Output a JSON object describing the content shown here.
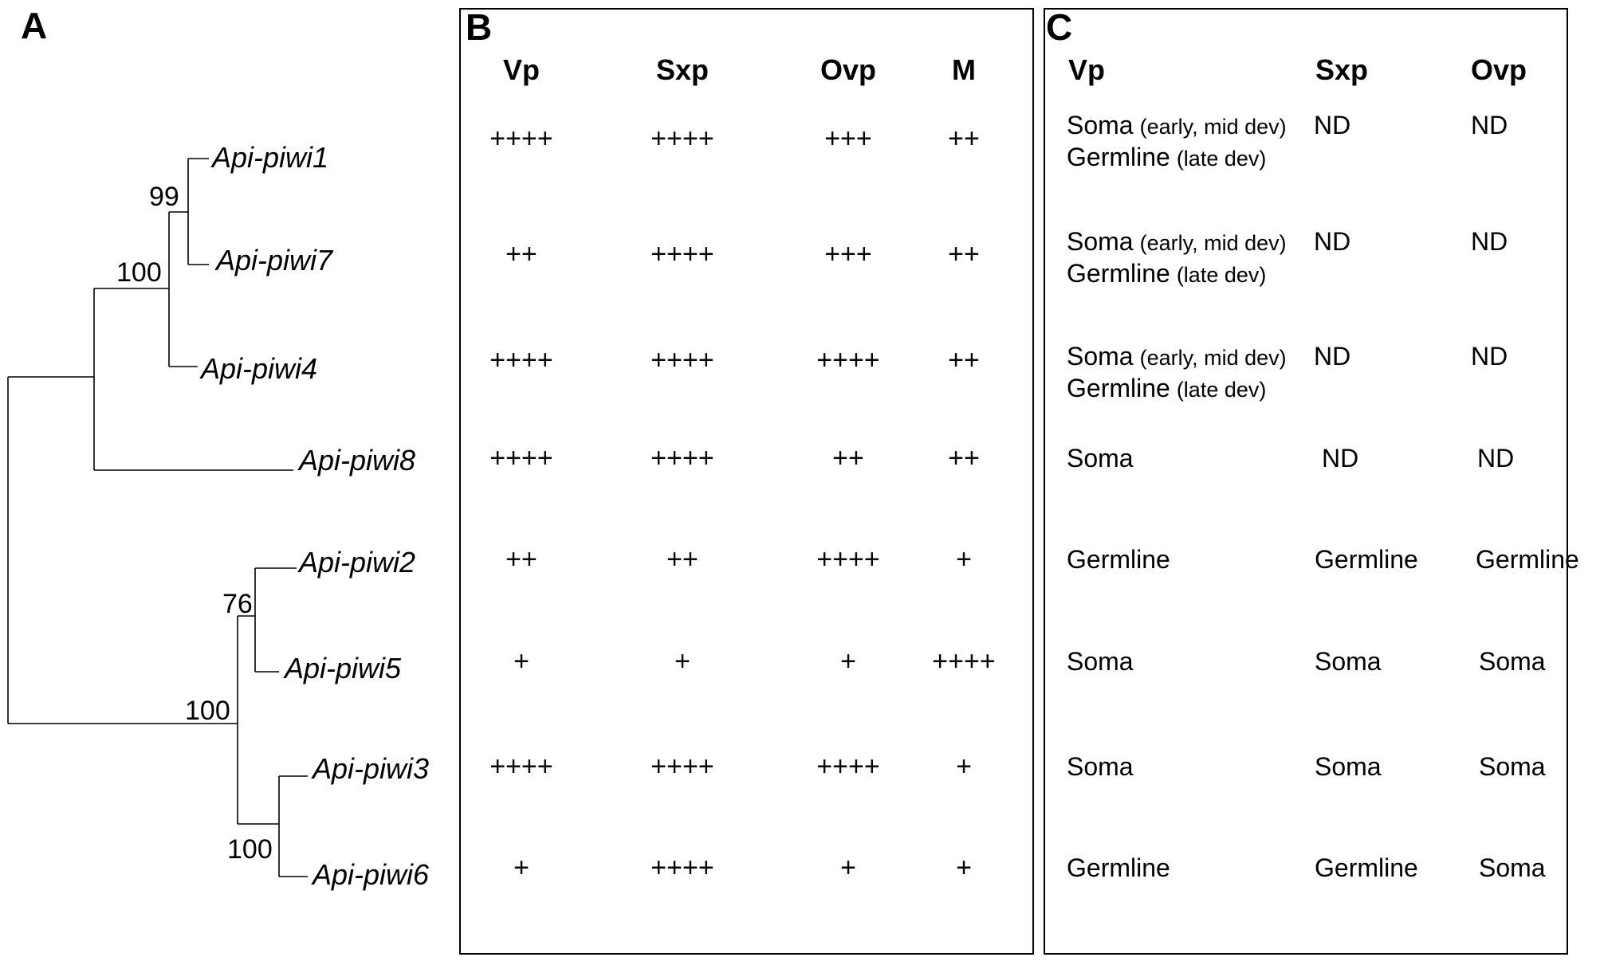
{
  "panels": {
    "a": "A",
    "b": "B",
    "c": "C"
  },
  "tree": {
    "genes": [
      "Api-piwi1",
      "Api-piwi7",
      "Api-piwi4",
      "Api-piwi8",
      "Api-piwi2",
      "Api-piwi5",
      "Api-piwi3",
      "Api-piwi6"
    ],
    "bootstrap": [
      "99",
      "100",
      "76",
      "100",
      "100"
    ]
  },
  "panel_b": {
    "headers": [
      "Vp",
      "Sxp",
      "Ovp",
      "M"
    ],
    "rows": [
      [
        "++++",
        "++++",
        "+++",
        "++"
      ],
      [
        "++",
        "++++",
        "+++",
        "++"
      ],
      [
        "++++",
        "++++",
        "++++",
        "++"
      ],
      [
        "++++",
        "++++",
        "++",
        "++"
      ],
      [
        "++",
        "++",
        "++++",
        "+"
      ],
      [
        "+",
        "+",
        "+",
        "++++"
      ],
      [
        "++++",
        "++++",
        "++++",
        "+"
      ],
      [
        "+",
        "++++",
        "+",
        "+"
      ]
    ]
  },
  "panel_c": {
    "headers": [
      "Vp",
      "Sxp",
      "Ovp"
    ],
    "rows": [
      {
        "vp_line1": "Soma",
        "vp_line1_note": "(early, mid dev)",
        "vp_line2": "Germline",
        "vp_line2_note": "(late dev)",
        "sxp": "ND",
        "ovp": "ND"
      },
      {
        "vp_line1": "Soma",
        "vp_line1_note": "(early, mid dev)",
        "vp_line2": "Germline",
        "vp_line2_note": "(late dev)",
        "sxp": "ND",
        "ovp": "ND"
      },
      {
        "vp_line1": "Soma",
        "vp_line1_note": "(early, mid dev)",
        "vp_line2": "Germline",
        "vp_line2_note": "(late dev)",
        "sxp": "ND",
        "ovp": "ND"
      },
      {
        "vp_line1": "Soma",
        "sxp": "ND",
        "ovp": "ND"
      },
      {
        "vp_line1": "Germline",
        "sxp": "Germline",
        "ovp": "Germline"
      },
      {
        "vp_line1": "Soma",
        "sxp": "Soma",
        "ovp": "Soma"
      },
      {
        "vp_line1": "Soma",
        "sxp": "Soma",
        "ovp": "Soma"
      },
      {
        "vp_line1": "Germline",
        "sxp": "Germline",
        "ovp": "Soma"
      }
    ]
  }
}
